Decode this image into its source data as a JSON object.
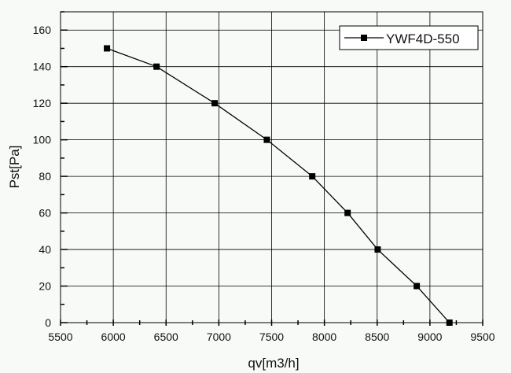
{
  "chart_data": {
    "type": "line",
    "title": "",
    "xlabel": "qv[m3/h]",
    "ylabel": "Pst[Pa]",
    "xlim": [
      5500,
      9500
    ],
    "ylim": [
      0,
      170
    ],
    "xticks": [
      5500,
      6000,
      6500,
      7000,
      7500,
      8000,
      8500,
      9000,
      9500
    ],
    "yticks": [
      0,
      20,
      40,
      60,
      80,
      100,
      120,
      140,
      160
    ],
    "grid": true,
    "legend_position": "top-right",
    "series": [
      {
        "name": "YWF4D-550",
        "marker": "square",
        "color": "#000000",
        "x": [
          5940,
          6410,
          6960,
          7455,
          7885,
          8220,
          8505,
          8875,
          9185
        ],
        "y": [
          150,
          140,
          120,
          100,
          80,
          60,
          40,
          20,
          0
        ]
      }
    ]
  }
}
